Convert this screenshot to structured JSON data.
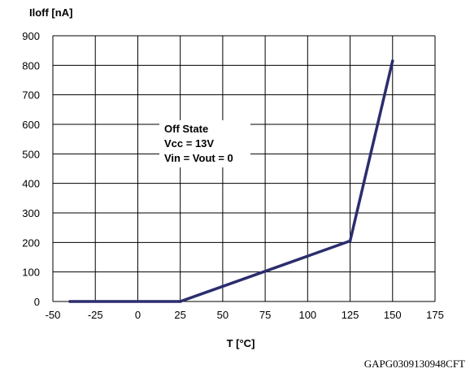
{
  "chart_data": {
    "type": "line",
    "title": "",
    "ylabel": "Iloff [nA]",
    "xlabel": "T [°C]",
    "xlim": [
      -50,
      175
    ],
    "ylim": [
      0,
      900
    ],
    "x_ticks": [
      -50,
      -25,
      0,
      25,
      50,
      75,
      100,
      125,
      150,
      175
    ],
    "y_ticks": [
      0,
      100,
      200,
      300,
      400,
      500,
      600,
      700,
      800,
      900
    ],
    "grid": true,
    "series": [
      {
        "color": "#2b2d6e",
        "points": [
          {
            "x": -40,
            "y": 0
          },
          {
            "x": 25,
            "y": 0
          },
          {
            "x": 125,
            "y": 205
          },
          {
            "x": 150,
            "y": 815
          }
        ]
      }
    ],
    "annotation": {
      "lines": [
        "Off State",
        "Vcc = 13V",
        "Vin = Vout = 0"
      ]
    },
    "figure_code": "GAPG0309130948CFT"
  }
}
